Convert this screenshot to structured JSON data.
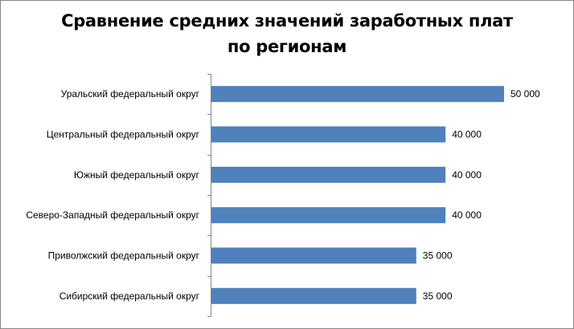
{
  "chart_data": {
    "type": "bar",
    "orientation": "horizontal",
    "title": "Сравнение средних значений заработных плат по регионам",
    "title_lines": [
      "Сравнение средних значений заработных плат",
      "по регионам"
    ],
    "categories": [
      "Уральский федеральный округ",
      "Центральный федеральный округ",
      "Южный федеральный округ",
      "Северо-Западный федеральный округ",
      "Приволжский федеральный округ",
      "Сибирский федеральный округ"
    ],
    "values": [
      50000,
      40000,
      40000,
      40000,
      35000,
      35000
    ],
    "data_labels": [
      "50 000",
      "40 000",
      "40 000",
      "40 000",
      "35 000",
      "35 000"
    ],
    "xlim": [
      0,
      50000
    ],
    "xlabel": "",
    "ylabel": "",
    "grid": false,
    "legend": "none",
    "bar_color": "#4F81BD"
  }
}
